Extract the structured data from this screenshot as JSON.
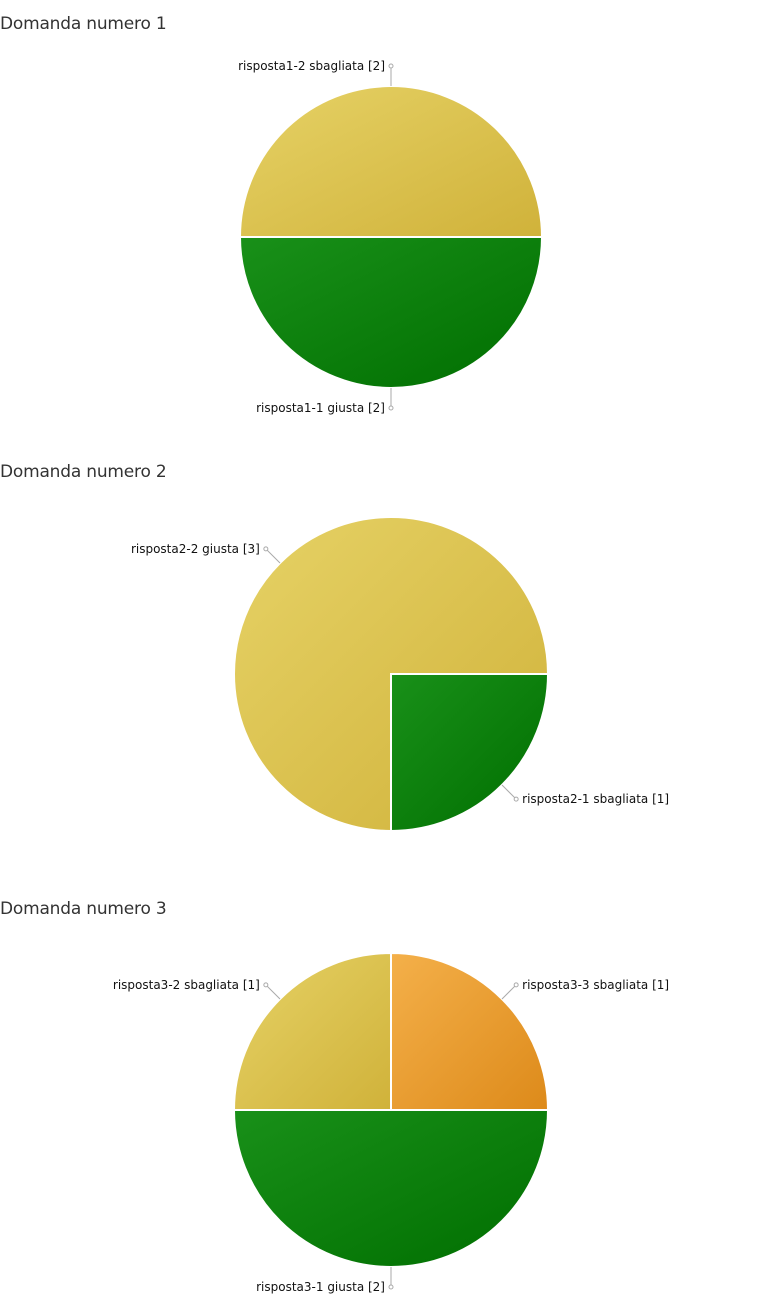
{
  "colors": {
    "gold_light": "#e6d266",
    "gold_dark": "#d0b23a",
    "green_light": "#199019",
    "green_dark": "#006e00",
    "orange_light": "#f4b04a",
    "orange_dark": "#dd8a1a",
    "connector": "#aaaaaa",
    "separator": "#ffffff"
  },
  "chart_data": [
    {
      "type": "pie",
      "title": "Domanda numero 1",
      "slices": [
        {
          "label": "risposta1-2 sbagliata [2]",
          "value": 2,
          "color": "gold"
        },
        {
          "label": "risposta1-1 giusta [2]",
          "value": 2,
          "color": "green"
        }
      ]
    },
    {
      "type": "pie",
      "title": "Domanda numero 2",
      "slices": [
        {
          "label": "risposta2-1 sbagliata [1]",
          "value": 1,
          "color": "green"
        },
        {
          "label": "risposta2-2 giusta [3]",
          "value": 3,
          "color": "gold"
        }
      ]
    },
    {
      "type": "pie",
      "title": "Domanda numero 3",
      "slices": [
        {
          "label": "risposta3-3 sbagliata [1]",
          "value": 1,
          "color": "orange"
        },
        {
          "label": "risposta3-1 giusta [2]",
          "value": 2,
          "color": "green"
        },
        {
          "label": "risposta3-2 sbagliata [1]",
          "value": 1,
          "color": "gold"
        }
      ]
    }
  ]
}
